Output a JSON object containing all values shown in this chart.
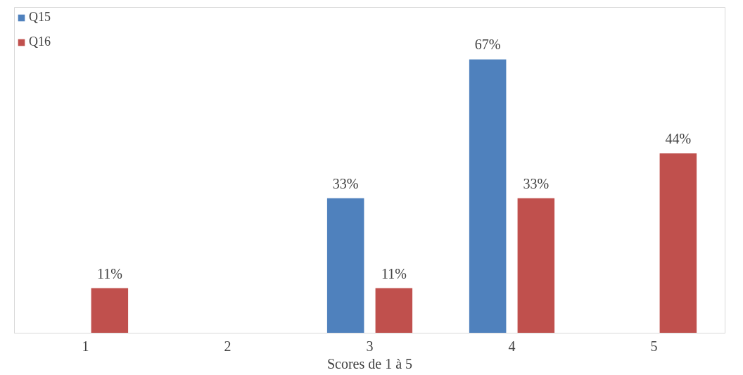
{
  "chart_data": {
    "type": "bar",
    "xlabel": "Scores de 1 à 5",
    "categories": [
      "1",
      "2",
      "3",
      "4",
      "5"
    ],
    "series": [
      {
        "name": "Q15",
        "color": "#4f81bd",
        "values": [
          null,
          null,
          33,
          67,
          null
        ],
        "value_labels": [
          null,
          null,
          "33%",
          "67%",
          null
        ]
      },
      {
        "name": "Q16",
        "color": "#c0504d",
        "values": [
          11,
          null,
          11,
          33,
          44
        ],
        "value_labels": [
          "11%",
          null,
          "11%",
          "33%",
          "44%"
        ]
      }
    ],
    "grid": false,
    "legend": "top left",
    "tick_labels": "x"
  }
}
